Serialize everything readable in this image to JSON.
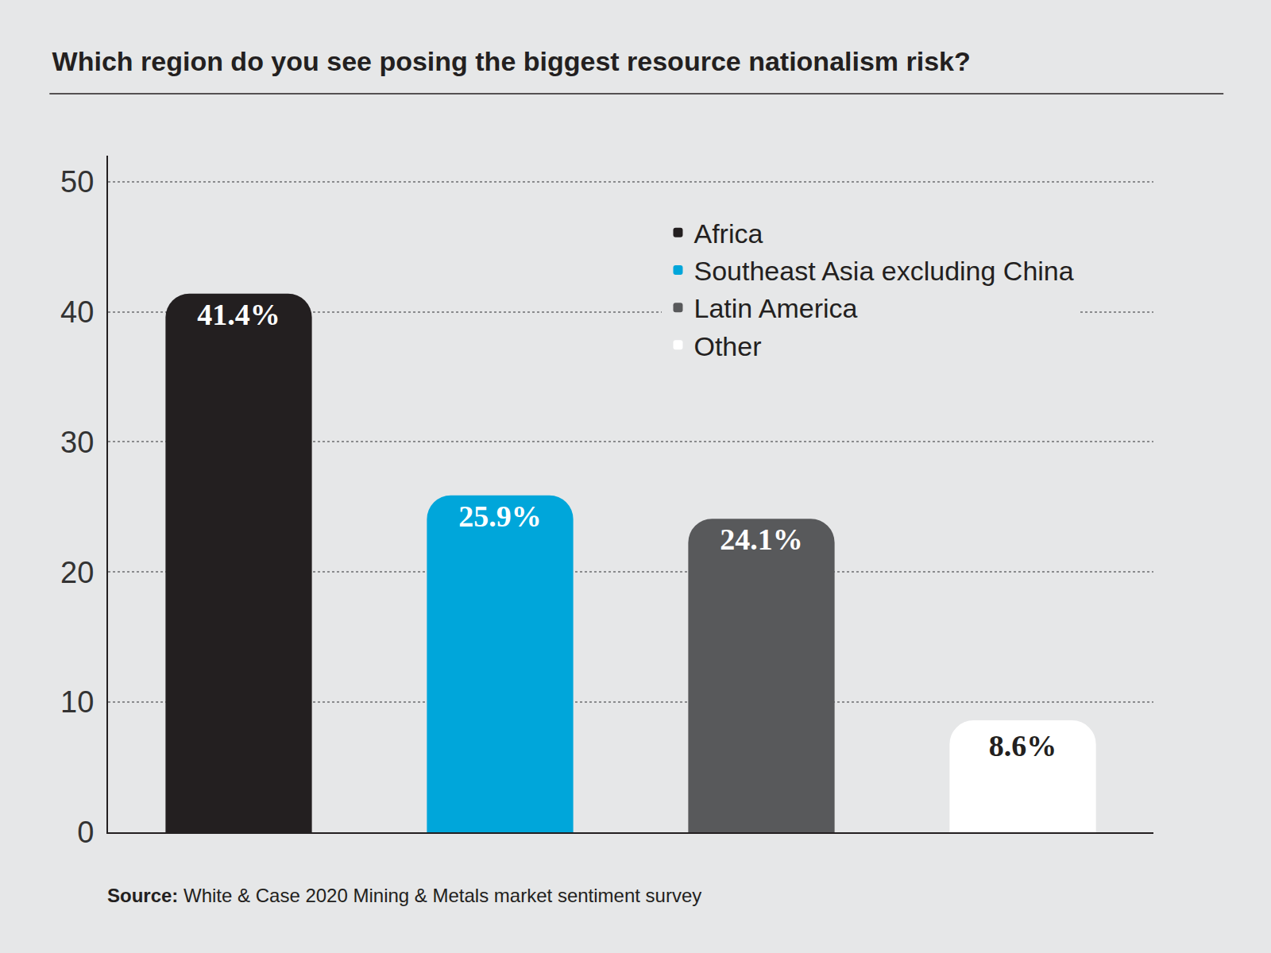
{
  "chart_data": {
    "type": "bar",
    "title": "Which region do you see posing the biggest resource nationalism risk?",
    "categories": [
      "Africa",
      "Southeast Asia excluding China",
      "Latin America",
      "Other"
    ],
    "values": [
      41.4,
      25.9,
      24.1,
      8.6
    ],
    "value_labels": [
      "41.4%",
      "25.9%",
      "24.1%",
      "8.6%"
    ],
    "colors": [
      "#231f20",
      "#00a6da",
      "#58595b",
      "#ffffff"
    ],
    "ylim": [
      0,
      52
    ],
    "yticks": [
      0,
      10,
      20,
      30,
      40,
      50
    ],
    "grid": true,
    "legend": "upper right",
    "data_labels": true,
    "tick_labels": "y",
    "source_label": "Source:",
    "source": "White & Case 2020 Mining & Metals market sentiment survey"
  }
}
